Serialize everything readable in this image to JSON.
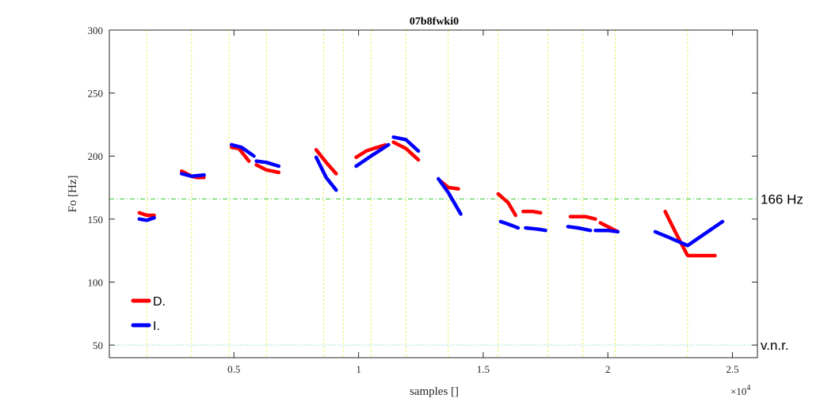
{
  "chart_data": {
    "type": "line",
    "title": "07b8fwki0",
    "xlabel": "samples []",
    "ylabel": "Fo [Hz]",
    "x_exponent_label": "×10",
    "x_exponent_power": "4",
    "xlim": [
      0,
      26000
    ],
    "ylim": [
      40,
      300
    ],
    "xticks": [
      5000,
      10000,
      15000,
      20000,
      25000
    ],
    "xtick_labels": [
      "0.5",
      "1",
      "1.5",
      "2",
      "2.5"
    ],
    "yticks": [
      50,
      100,
      150,
      200,
      250,
      300
    ],
    "ytick_labels": [
      "50",
      "100",
      "150",
      "200",
      "250",
      "300"
    ],
    "grid": "vertical dotted yellow lines at segment boundaries",
    "vertical_guides": [
      1500,
      3300,
      4800,
      6300,
      8600,
      9400,
      10500,
      11900,
      13600,
      15600,
      17600,
      19000,
      20300,
      23200
    ],
    "reference_lines": [
      {
        "value": 166,
        "label": "166 Hz",
        "color": "#33cc33",
        "style": "dash-dot"
      },
      {
        "value": 50,
        "label": "v.n.r.",
        "color": "#66cccc",
        "style": "dotted"
      }
    ],
    "legend_position": "bottom-left",
    "series": [
      {
        "name": "D.",
        "color": "#ff0000",
        "segments": [
          [
            [
              1200,
              155
            ],
            [
              1500,
              153
            ],
            [
              1800,
              153
            ]
          ],
          [
            [
              2900,
              188
            ],
            [
              3300,
              184
            ],
            [
              3500,
              183
            ],
            [
              3800,
              183
            ]
          ],
          [
            [
              4900,
              207
            ],
            [
              5200,
              206
            ],
            [
              5600,
              196
            ]
          ],
          [
            [
              5900,
              193
            ],
            [
              6300,
              189
            ],
            [
              6800,
              187
            ]
          ],
          [
            [
              8300,
              205
            ],
            [
              8700,
              195
            ],
            [
              9100,
              186
            ]
          ],
          [
            [
              9900,
              199
            ],
            [
              10300,
              204
            ],
            [
              10600,
              206
            ],
            [
              11100,
              209
            ]
          ],
          [
            [
              11400,
              211
            ],
            [
              11900,
              206
            ],
            [
              12400,
              197
            ]
          ],
          [
            [
              13300,
              180
            ],
            [
              13600,
              175
            ],
            [
              14000,
              174
            ]
          ],
          [
            [
              15600,
              170
            ],
            [
              16000,
              163
            ],
            [
              16300,
              153
            ]
          ],
          [
            [
              16600,
              156
            ],
            [
              17000,
              156
            ],
            [
              17300,
              155
            ]
          ],
          [
            [
              18500,
              152
            ],
            [
              19100,
              152
            ],
            [
              19500,
              150
            ]
          ],
          [
            [
              19700,
              147
            ],
            [
              20000,
              144
            ],
            [
              20400,
              140
            ]
          ],
          [
            [
              22300,
              156
            ],
            [
              22700,
              140
            ],
            [
              23200,
              121
            ],
            [
              24300,
              121
            ]
          ]
        ]
      },
      {
        "name": "I.",
        "color": "#0000ff",
        "segments": [
          [
            [
              1200,
              150
            ],
            [
              1500,
              149
            ],
            [
              1800,
              151
            ]
          ],
          [
            [
              2900,
              186
            ],
            [
              3300,
              184
            ],
            [
              3800,
              185
            ]
          ],
          [
            [
              4900,
              209
            ],
            [
              5300,
              207
            ],
            [
              5800,
              200
            ]
          ],
          [
            [
              5900,
              196
            ],
            [
              6300,
              195
            ],
            [
              6800,
              192
            ]
          ],
          [
            [
              8300,
              199
            ],
            [
              8700,
              183
            ],
            [
              9100,
              173
            ]
          ],
          [
            [
              9900,
              192
            ],
            [
              10500,
              200
            ],
            [
              11200,
              209
            ]
          ],
          [
            [
              11400,
              215
            ],
            [
              11900,
              213
            ],
            [
              12400,
              204
            ]
          ],
          [
            [
              13200,
              182
            ],
            [
              13600,
              171
            ],
            [
              14100,
              154
            ]
          ],
          [
            [
              15700,
              148
            ],
            [
              16000,
              146
            ],
            [
              16400,
              143
            ]
          ],
          [
            [
              16700,
              143
            ],
            [
              17200,
              142
            ],
            [
              17500,
              141
            ]
          ],
          [
            [
              18400,
              144
            ],
            [
              18800,
              143
            ],
            [
              19300,
              141
            ]
          ],
          [
            [
              19500,
              141
            ],
            [
              20000,
              141
            ],
            [
              20400,
              140
            ]
          ],
          [
            [
              21900,
              140
            ],
            [
              22500,
              135
            ],
            [
              23200,
              129
            ],
            [
              24600,
              148
            ]
          ]
        ]
      }
    ]
  }
}
